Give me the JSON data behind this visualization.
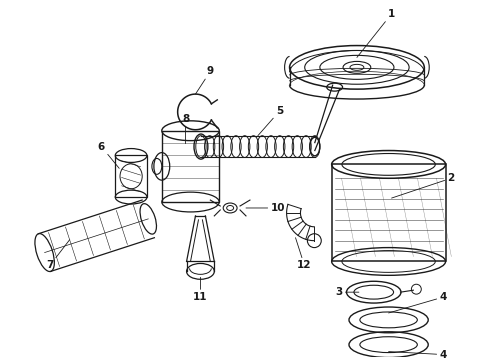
{
  "background_color": "#ffffff",
  "line_color": "#1a1a1a",
  "fig_width": 4.9,
  "fig_height": 3.6,
  "dpi": 100,
  "label_fontsize": 7.5,
  "label_fontweight": "bold",
  "arrow_lw": 0.6
}
